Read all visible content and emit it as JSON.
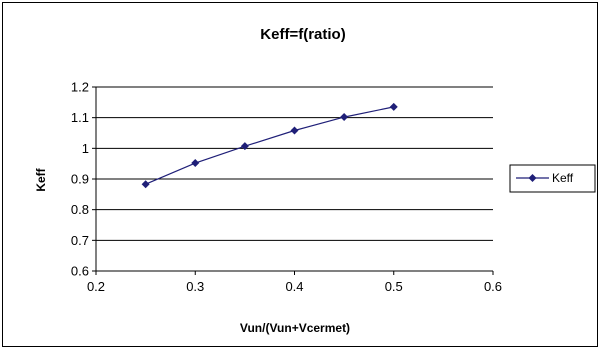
{
  "chart_data": {
    "type": "line",
    "title": "Keff=f(ratio)",
    "xlabel": "Vun/(Vun+Vcermet)",
    "ylabel": "Keff",
    "xlim": [
      0.2,
      0.6
    ],
    "ylim": [
      0.6,
      1.2
    ],
    "xticks": [
      "0.2",
      "0.3",
      "0.4",
      "0.5",
      "0.6"
    ],
    "yticks": [
      "0.6",
      "0.7",
      "0.8",
      "0.9",
      "1",
      "1.1",
      "1.2"
    ],
    "grid": "horizontal",
    "legend_position": "right",
    "series": [
      {
        "name": "Keff",
        "color": "#1f1f78",
        "marker": "diamond",
        "x": [
          0.25,
          0.3,
          0.35,
          0.4,
          0.45,
          0.5
        ],
        "y": [
          0.883,
          0.952,
          1.007,
          1.058,
          1.102,
          1.135
        ]
      }
    ]
  }
}
